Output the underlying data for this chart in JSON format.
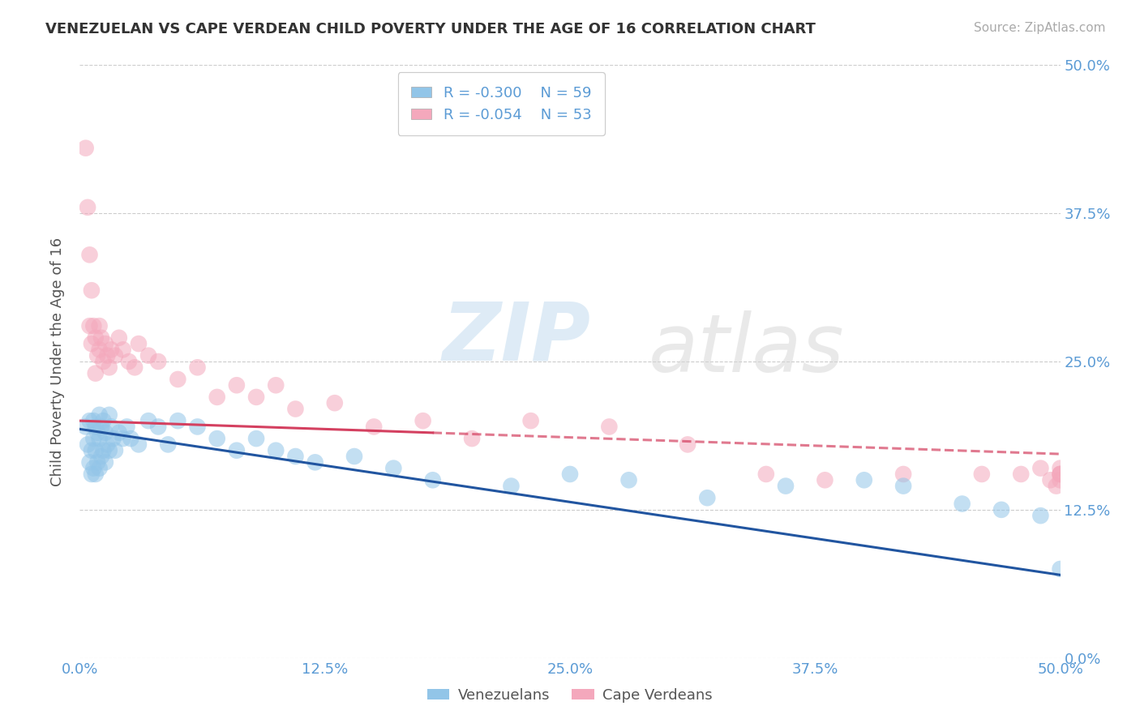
{
  "title": "VENEZUELAN VS CAPE VERDEAN CHILD POVERTY UNDER THE AGE OF 16 CORRELATION CHART",
  "source": "Source: ZipAtlas.com",
  "ylabel": "Child Poverty Under the Age of 16",
  "xlim": [
    0.0,
    0.5
  ],
  "ylim": [
    0.0,
    0.5
  ],
  "color_blue": "#92c5e8",
  "color_pink": "#f4a8bc",
  "trend_blue": "#2155a0",
  "trend_pink": "#d44060",
  "ven_x": [
    0.003,
    0.004,
    0.005,
    0.005,
    0.006,
    0.006,
    0.007,
    0.007,
    0.007,
    0.008,
    0.008,
    0.008,
    0.009,
    0.009,
    0.01,
    0.01,
    0.01,
    0.011,
    0.011,
    0.012,
    0.012,
    0.013,
    0.013,
    0.014,
    0.015,
    0.015,
    0.016,
    0.017,
    0.018,
    0.02,
    0.022,
    0.024,
    0.026,
    0.03,
    0.035,
    0.04,
    0.045,
    0.05,
    0.06,
    0.07,
    0.08,
    0.09,
    0.1,
    0.11,
    0.12,
    0.14,
    0.16,
    0.18,
    0.22,
    0.25,
    0.28,
    0.32,
    0.36,
    0.4,
    0.42,
    0.45,
    0.47,
    0.49,
    0.5
  ],
  "ven_y": [
    0.195,
    0.18,
    0.2,
    0.165,
    0.175,
    0.155,
    0.2,
    0.185,
    0.16,
    0.195,
    0.175,
    0.155,
    0.19,
    0.165,
    0.205,
    0.185,
    0.16,
    0.195,
    0.17,
    0.2,
    0.175,
    0.19,
    0.165,
    0.18,
    0.205,
    0.175,
    0.195,
    0.185,
    0.175,
    0.19,
    0.185,
    0.195,
    0.185,
    0.18,
    0.2,
    0.195,
    0.18,
    0.2,
    0.195,
    0.185,
    0.175,
    0.185,
    0.175,
    0.17,
    0.165,
    0.17,
    0.16,
    0.15,
    0.145,
    0.155,
    0.15,
    0.135,
    0.145,
    0.15,
    0.145,
    0.13,
    0.125,
    0.12,
    0.075
  ],
  "cv_x": [
    0.003,
    0.004,
    0.005,
    0.005,
    0.006,
    0.006,
    0.007,
    0.008,
    0.008,
    0.009,
    0.01,
    0.01,
    0.011,
    0.012,
    0.013,
    0.014,
    0.015,
    0.016,
    0.018,
    0.02,
    0.022,
    0.025,
    0.028,
    0.03,
    0.035,
    0.04,
    0.05,
    0.06,
    0.07,
    0.08,
    0.09,
    0.1,
    0.11,
    0.13,
    0.15,
    0.175,
    0.2,
    0.23,
    0.27,
    0.31,
    0.35,
    0.38,
    0.42,
    0.46,
    0.48,
    0.49,
    0.495,
    0.498,
    0.5,
    0.5,
    0.5,
    0.5,
    0.5
  ],
  "cv_y": [
    0.43,
    0.38,
    0.34,
    0.28,
    0.31,
    0.265,
    0.28,
    0.27,
    0.24,
    0.255,
    0.28,
    0.26,
    0.27,
    0.25,
    0.265,
    0.255,
    0.245,
    0.26,
    0.255,
    0.27,
    0.26,
    0.25,
    0.245,
    0.265,
    0.255,
    0.25,
    0.235,
    0.245,
    0.22,
    0.23,
    0.22,
    0.23,
    0.21,
    0.215,
    0.195,
    0.2,
    0.185,
    0.2,
    0.195,
    0.18,
    0.155,
    0.15,
    0.155,
    0.155,
    0.155,
    0.16,
    0.15,
    0.145,
    0.16,
    0.155,
    0.155,
    0.15,
    0.155
  ],
  "ven_trend_start_y": 0.193,
  "ven_trend_end_y": 0.07,
  "cv_trend_start_y": 0.2,
  "cv_trend_end_y": 0.172
}
